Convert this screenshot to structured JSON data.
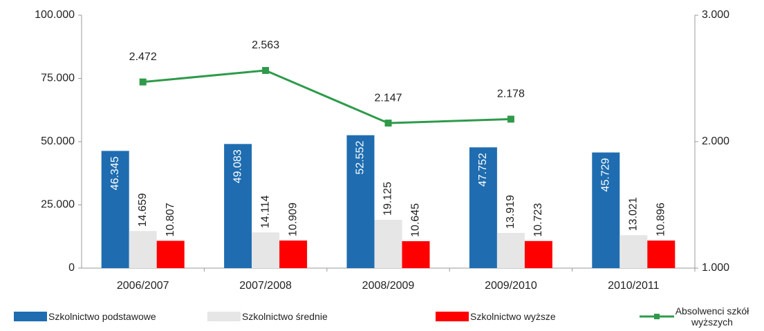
{
  "chart_data": {
    "type": "bar",
    "categories": [
      "2006/2007",
      "2007/2008",
      "2008/2009",
      "2009/2010",
      "2010/2011"
    ],
    "series": [
      {
        "name": "Szkolnictwo podstawowe",
        "color": "#1f6db0",
        "values": [
          46345,
          49083,
          52552,
          47752,
          45729
        ],
        "value_labels": [
          "46.345",
          "49.083",
          "52.552",
          "47.752",
          "45.729"
        ]
      },
      {
        "name": "Szkolnictwo średnie",
        "color": "#e6e6e6",
        "values": [
          14659,
          14114,
          19125,
          13919,
          13021
        ],
        "value_labels": [
          "14.659",
          "14.114",
          "19.125",
          "13.919",
          "13.021"
        ]
      },
      {
        "name": "Szkolnictwo wyższe",
        "color": "#ff0000",
        "values": [
          10807,
          10909,
          10645,
          10723,
          10896
        ],
        "value_labels": [
          "10.807",
          "10.909",
          "10.645",
          "10.723",
          "10.896"
        ]
      },
      {
        "name": "Absolwenci szkół wyższych",
        "type": "line",
        "axis": "y2",
        "color": "#2e9a4a",
        "values": [
          2472,
          2563,
          2147,
          2178,
          null
        ],
        "value_labels": [
          "2.472",
          "2.563",
          "2.147",
          "2.178",
          null
        ]
      }
    ],
    "ylim": [
      0,
      100000
    ],
    "yticks": [
      0,
      {
        "value": 25000,
        "label": "25.000"
      },
      {
        "value": 50000,
        "label": "50.000"
      },
      {
        "value": 75000,
        "label": "75.000"
      },
      {
        "value": 100000,
        "label": "100.000"
      }
    ],
    "y2lim": [
      1000,
      3000
    ],
    "y2ticks": [
      {
        "value": 1000,
        "label": "1.000"
      },
      {
        "value": 2000,
        "label": "2.000"
      },
      {
        "value": 3000,
        "label": "3.000"
      }
    ],
    "grid": false,
    "legend": "bottom"
  }
}
